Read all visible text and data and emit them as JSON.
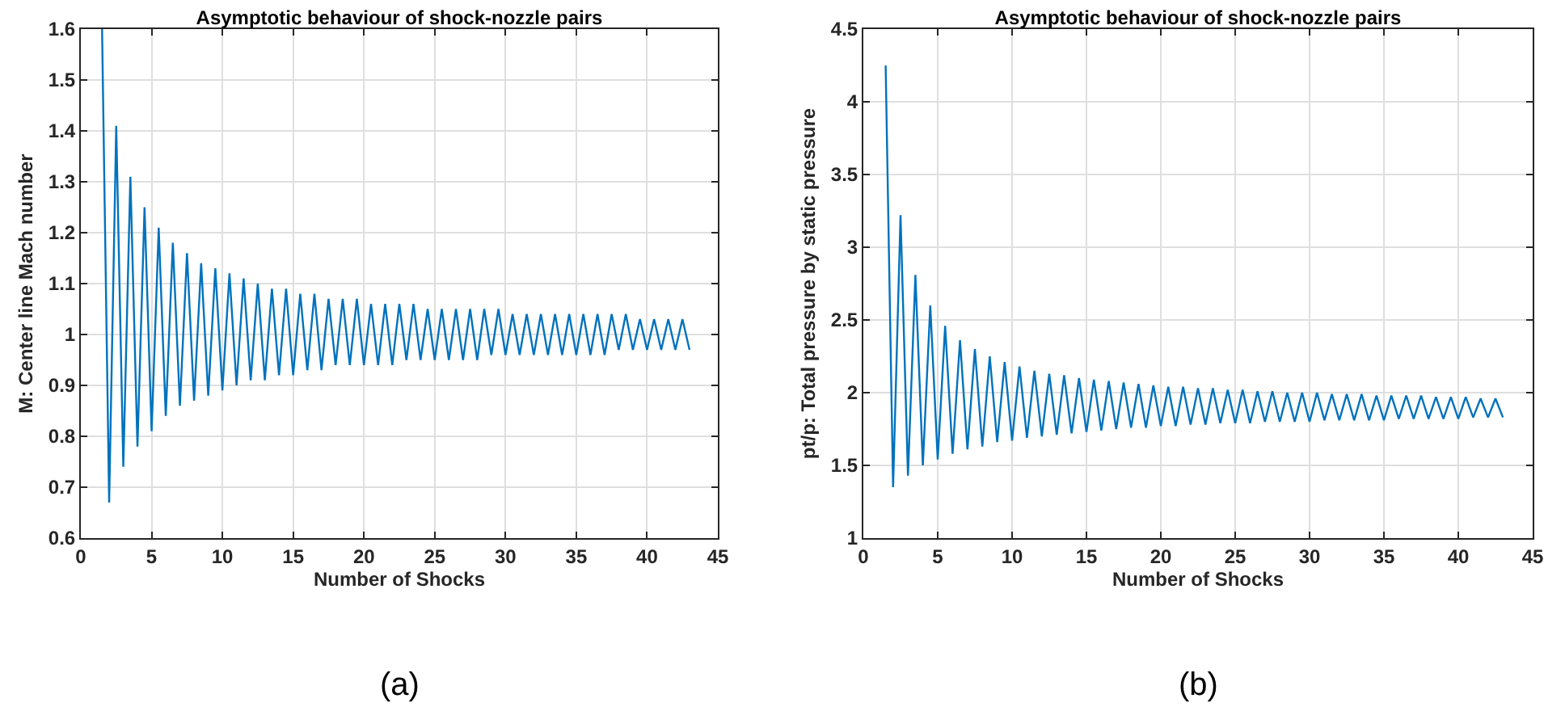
{
  "chart_data": [
    {
      "type": "line",
      "title": "Asymptotic behaviour of shock-nozzle pairs",
      "xlabel": "Number of Shocks",
      "ylabel": "M: Center line Mach number",
      "annotations": [
        "(a)"
      ],
      "x": [
        1.5,
        2,
        2.5,
        3,
        3.5,
        4,
        4.5,
        5,
        5.5,
        6,
        6.5,
        7,
        7.5,
        8,
        8.5,
        9,
        9.5,
        10,
        10.5,
        11,
        11.5,
        12,
        12.5,
        13,
        13.5,
        14,
        14.5,
        15,
        15.5,
        16,
        16.5,
        17,
        17.5,
        18,
        18.5,
        19,
        19.5,
        20,
        20.5,
        21,
        21.5,
        22,
        22.5,
        23,
        23.5,
        24,
        24.5,
        25,
        25.5,
        26,
        26.5,
        27,
        27.5,
        28,
        28.5,
        29,
        29.5,
        30,
        30.5,
        31,
        31.5,
        32,
        32.5,
        33,
        33.5,
        34,
        34.5,
        35,
        35.5,
        36,
        36.5,
        37,
        37.5,
        38,
        38.5,
        39,
        39.5,
        40,
        40.5,
        41,
        41.5,
        42,
        42.5,
        43
      ],
      "series": [
        {
          "color": "#0072bd",
          "values": [
            1.6,
            0.67,
            1.41,
            0.74,
            1.31,
            0.78,
            1.25,
            0.81,
            1.21,
            0.84,
            1.18,
            0.86,
            1.16,
            0.87,
            1.14,
            0.88,
            1.13,
            0.89,
            1.12,
            0.9,
            1.11,
            0.91,
            1.1,
            0.91,
            1.09,
            0.92,
            1.09,
            0.92,
            1.08,
            0.93,
            1.08,
            0.93,
            1.07,
            0.94,
            1.07,
            0.94,
            1.07,
            0.94,
            1.06,
            0.94,
            1.06,
            0.94,
            1.06,
            0.95,
            1.06,
            0.95,
            1.05,
            0.95,
            1.05,
            0.95,
            1.05,
            0.95,
            1.05,
            0.95,
            1.05,
            0.96,
            1.05,
            0.96,
            1.04,
            0.96,
            1.04,
            0.96,
            1.04,
            0.96,
            1.04,
            0.96,
            1.04,
            0.96,
            1.04,
            0.96,
            1.04,
            0.96,
            1.04,
            0.97,
            1.04,
            0.97,
            1.03,
            0.97,
            1.03,
            0.97,
            1.03,
            0.97,
            1.03,
            0.97
          ]
        }
      ],
      "xlim": [
        0,
        45
      ],
      "xticks": [
        0,
        5,
        10,
        15,
        20,
        25,
        30,
        35,
        40,
        45
      ],
      "ylim": [
        0.6,
        1.6
      ],
      "yticks": [
        0.6,
        0.7,
        0.8,
        0.9,
        1,
        1.1,
        1.2,
        1.3,
        1.4,
        1.5,
        1.6
      ],
      "grid": true,
      "marker": "none",
      "line_style": "solid"
    },
    {
      "type": "line",
      "title": "Asymptotic behaviour of shock-nozzle pairs",
      "xlabel": "Number of Shocks",
      "ylabel": "pt/p: Total pressure by static pressure",
      "annotations": [
        "(b)"
      ],
      "x": [
        1.5,
        2,
        2.5,
        3,
        3.5,
        4,
        4.5,
        5,
        5.5,
        6,
        6.5,
        7,
        7.5,
        8,
        8.5,
        9,
        9.5,
        10,
        10.5,
        11,
        11.5,
        12,
        12.5,
        13,
        13.5,
        14,
        14.5,
        15,
        15.5,
        16,
        16.5,
        17,
        17.5,
        18,
        18.5,
        19,
        19.5,
        20,
        20.5,
        21,
        21.5,
        22,
        22.5,
        23,
        23.5,
        24,
        24.5,
        25,
        25.5,
        26,
        26.5,
        27,
        27.5,
        28,
        28.5,
        29,
        29.5,
        30,
        30.5,
        31,
        31.5,
        32,
        32.5,
        33,
        33.5,
        34,
        34.5,
        35,
        35.5,
        36,
        36.5,
        37,
        37.5,
        38,
        38.5,
        39,
        39.5,
        40,
        40.5,
        41,
        41.5,
        42,
        42.5,
        43
      ],
      "series": [
        {
          "color": "#0072bd",
          "values": [
            4.25,
            1.35,
            3.22,
            1.43,
            2.81,
            1.5,
            2.6,
            1.54,
            2.46,
            1.58,
            2.36,
            1.61,
            2.3,
            1.63,
            2.25,
            1.66,
            2.21,
            1.67,
            2.18,
            1.69,
            2.15,
            1.7,
            2.13,
            1.71,
            2.12,
            1.72,
            2.1,
            1.73,
            2.09,
            1.74,
            2.08,
            1.75,
            2.07,
            1.76,
            2.06,
            1.76,
            2.05,
            1.77,
            2.04,
            1.77,
            2.04,
            1.78,
            2.03,
            1.78,
            2.03,
            1.79,
            2.02,
            1.79,
            2.02,
            1.79,
            2.01,
            1.8,
            2.01,
            1.8,
            2,
            1.8,
            2,
            1.8,
            2,
            1.81,
            1.99,
            1.81,
            1.99,
            1.81,
            1.99,
            1.81,
            1.98,
            1.81,
            1.98,
            1.82,
            1.98,
            1.82,
            1.98,
            1.82,
            1.97,
            1.82,
            1.97,
            1.82,
            1.97,
            1.83,
            1.96,
            1.83,
            1.96,
            1.83
          ]
        }
      ],
      "xlim": [
        0,
        45
      ],
      "xticks": [
        0,
        5,
        10,
        15,
        20,
        25,
        30,
        35,
        40,
        45
      ],
      "ylim": [
        1,
        4.5
      ],
      "yticks": [
        1,
        1.5,
        2,
        2.5,
        3,
        3.5,
        4,
        4.5
      ],
      "grid": true,
      "marker": "none",
      "line_style": "solid"
    }
  ]
}
